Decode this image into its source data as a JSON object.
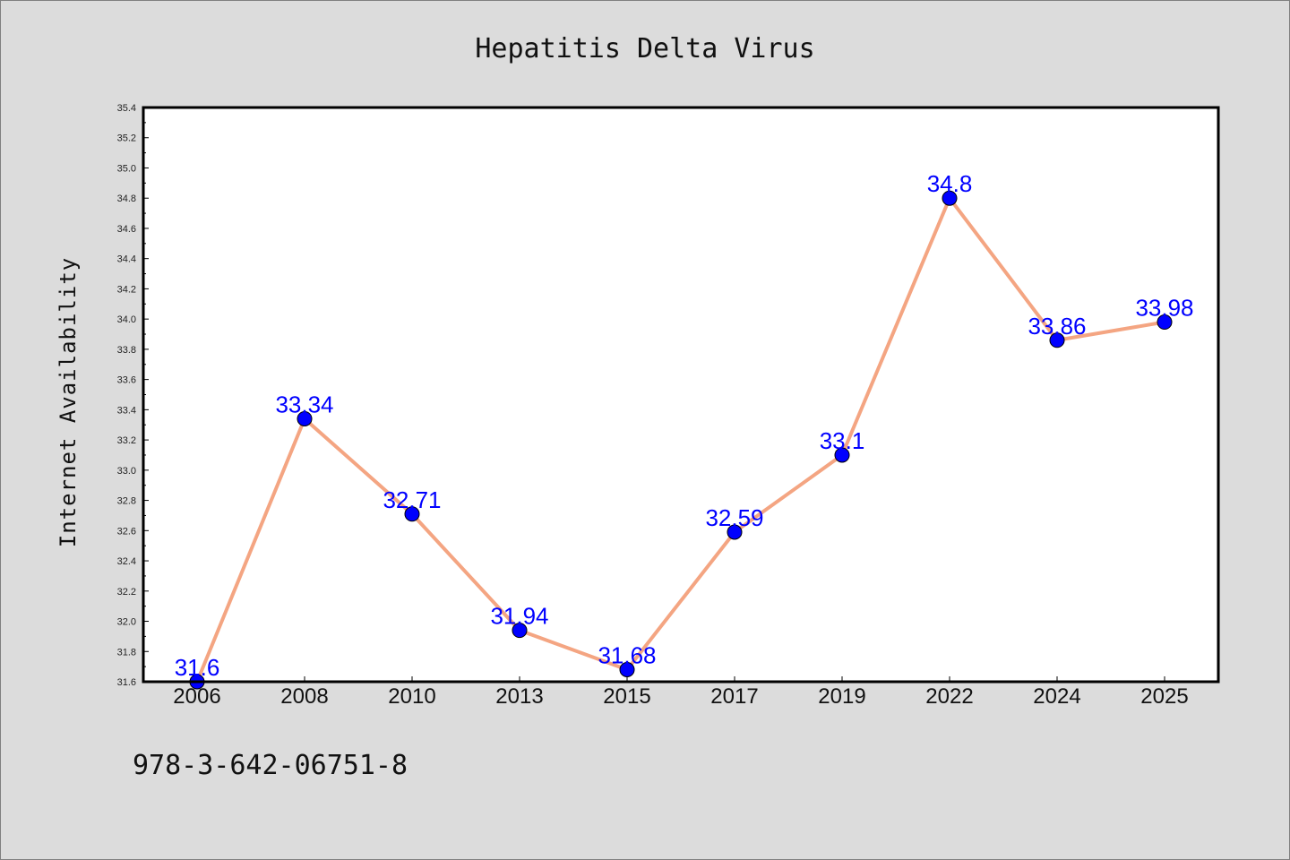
{
  "chart_data": {
    "type": "line",
    "title": "Hepatitis Delta Virus",
    "xlabel": "",
    "ylabel": "Internet Availability",
    "categories": [
      "2006",
      "2008",
      "2010",
      "2013",
      "2015",
      "2017",
      "2019",
      "2022",
      "2024",
      "2025"
    ],
    "series": [
      {
        "values": [
          31.6,
          33.34,
          32.71,
          31.94,
          31.68,
          32.59,
          33.1,
          34.8,
          33.86,
          33.98
        ],
        "labels": [
          "31.6",
          "33.34",
          "32.71",
          "31.94",
          "31.68",
          "32.59",
          "33.1",
          "34.8",
          "33.86",
          "33.98"
        ],
        "line_color": "#f4a582",
        "marker_color": "#0000ff"
      }
    ],
    "ylim": [
      31.6,
      35.4
    ],
    "yticks": [
      "31.6",
      "31.8",
      "32.0",
      "32.2",
      "32.4",
      "32.6",
      "32.8",
      "33.0",
      "33.2",
      "33.4",
      "33.6",
      "33.8",
      "34.0",
      "34.2",
      "34.4",
      "34.6",
      "34.8",
      "35.0",
      "35.2",
      "35.4"
    ],
    "grid": false,
    "legend": "none"
  },
  "footer": {
    "isbn": "978-3-642-06751-8"
  },
  "colors": {
    "background": "#dcdcdc",
    "plot_background": "#ffffff",
    "label": "#0000ff"
  }
}
